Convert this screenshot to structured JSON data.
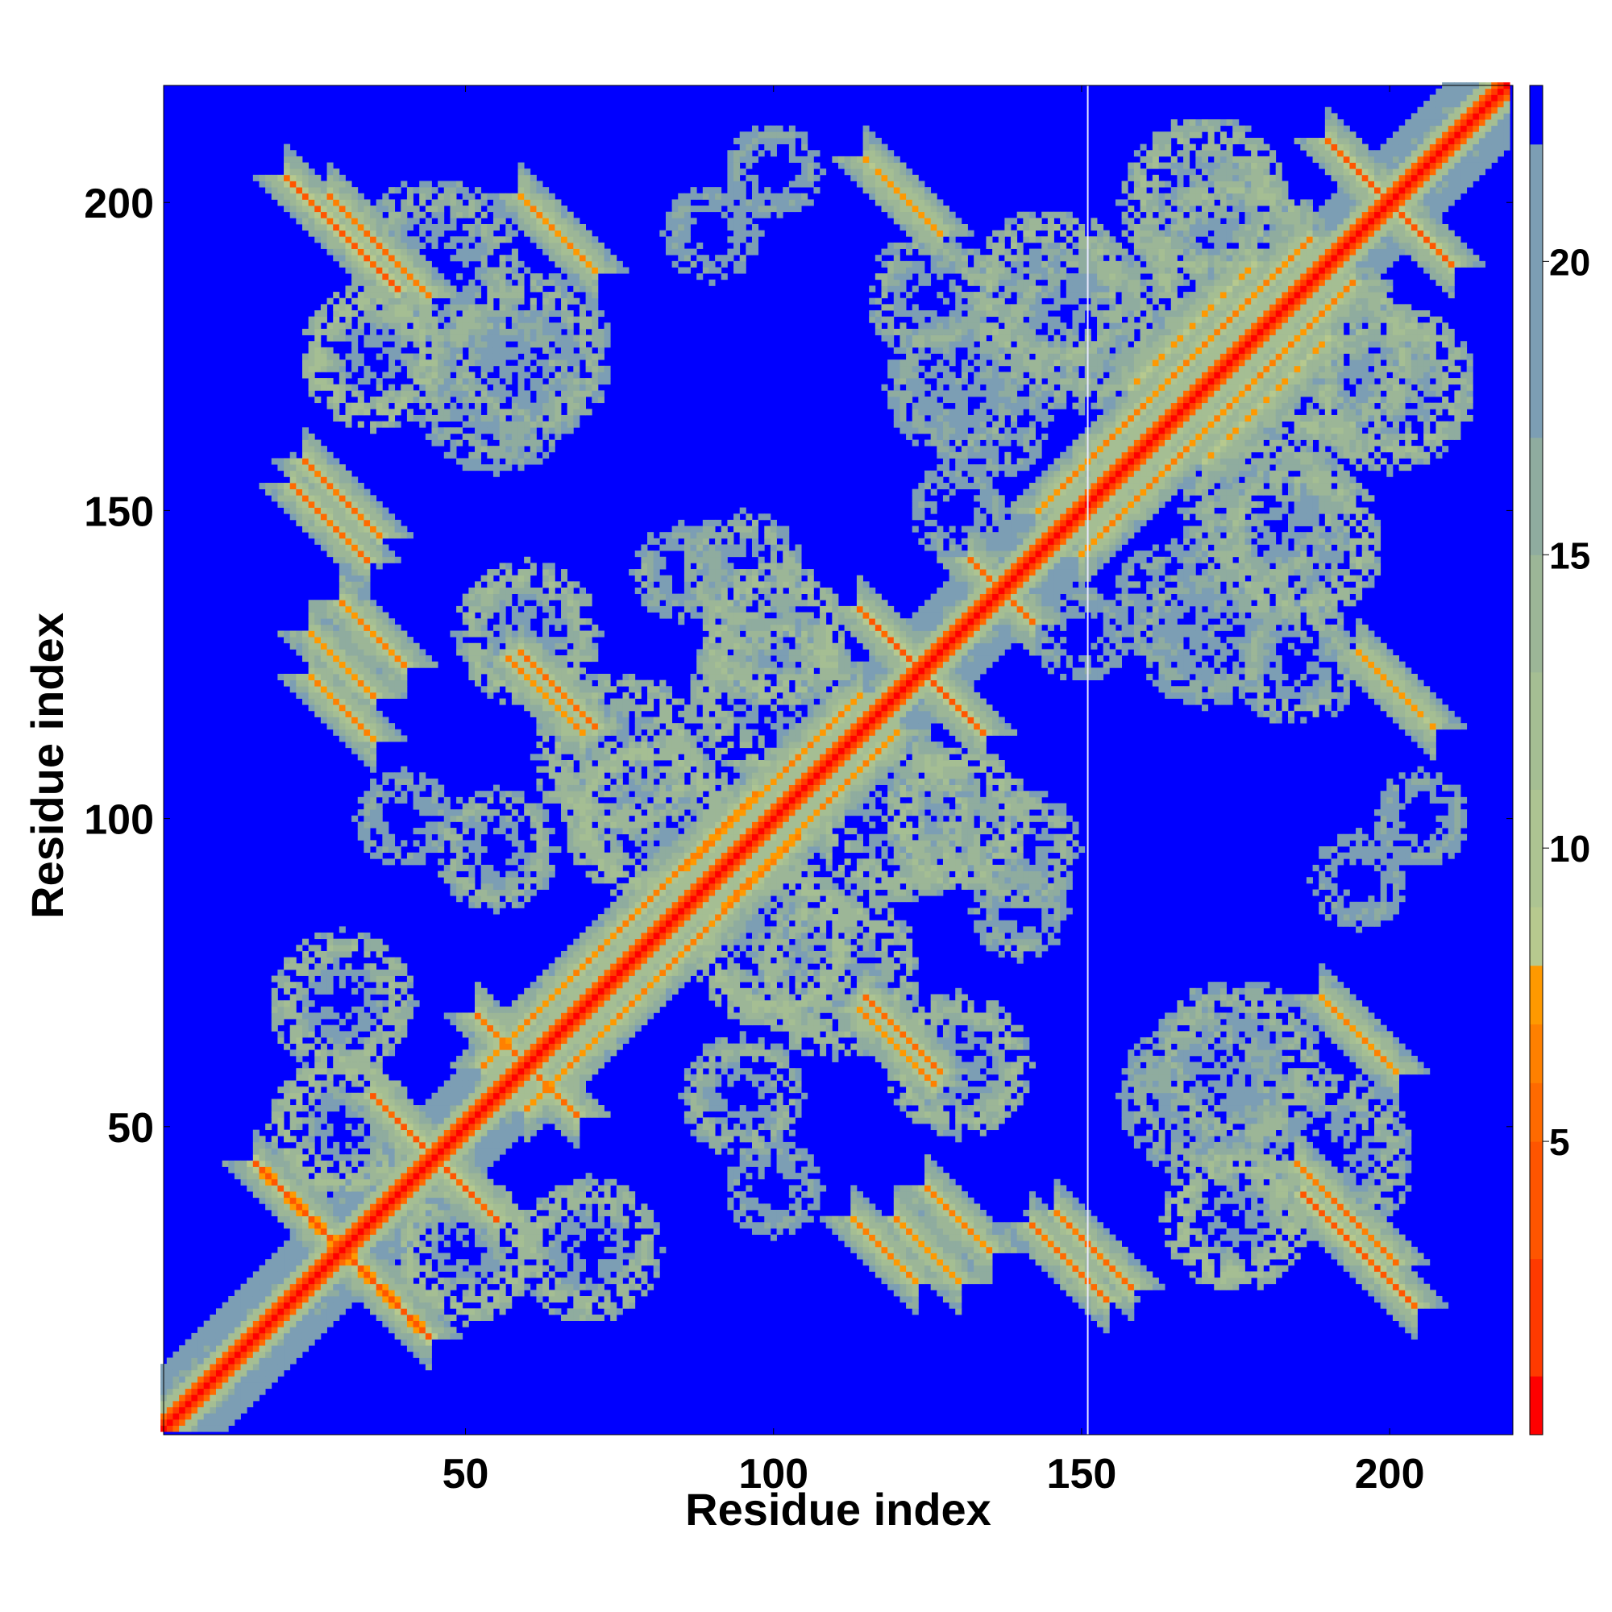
{
  "chart_data": {
    "type": "heatmap",
    "title": "",
    "xlabel": "Residue index",
    "ylabel": "Residue index",
    "n_residues": 219,
    "xlim": [
      1,
      219
    ],
    "ylim": [
      1,
      219
    ],
    "x_ticks": [
      50,
      100,
      150,
      200
    ],
    "y_ticks": [
      50,
      100,
      150,
      200
    ],
    "x_tick_labels": [
      "50",
      "100",
      "150",
      "200"
    ],
    "y_tick_labels": [
      "50",
      "100",
      "150",
      "200"
    ],
    "grid": false,
    "value_range": [
      0,
      23
    ],
    "colorbar": {
      "ticks": [
        5,
        10,
        15,
        20
      ],
      "tick_labels": [
        "5",
        "10",
        "15",
        "20"
      ],
      "levels": [
        {
          "from": 0,
          "to": 1,
          "color": "#ff0000"
        },
        {
          "from": 1,
          "to": 3,
          "color": "#ff3a00"
        },
        {
          "from": 3,
          "to": 5,
          "color": "#ff5500"
        },
        {
          "from": 5,
          "to": 6,
          "color": "#ff6a00"
        },
        {
          "from": 6,
          "to": 7,
          "color": "#ff8000"
        },
        {
          "from": 7,
          "to": 8,
          "color": "#ff9900"
        },
        {
          "from": 8,
          "to": 9,
          "color": "#b7c98e"
        },
        {
          "from": 9,
          "to": 11,
          "color": "#adc492"
        },
        {
          "from": 11,
          "to": 13,
          "color": "#a5be93"
        },
        {
          "from": 13,
          "to": 15,
          "color": "#9cb697"
        },
        {
          "from": 15,
          "to": 17,
          "color": "#8fac9f"
        },
        {
          "from": 17,
          "to": 22,
          "color": "#7c9eb4"
        },
        {
          "from": 22,
          "to": 23,
          "color": "#0000ff"
        }
      ]
    },
    "structure": {
      "diagonal_value": 0.5,
      "background_value": 23,
      "features": [
        {
          "type": "anti",
          "x": 30,
          "y": 195,
          "length": 9,
          "value": 4
        },
        {
          "type": "anti",
          "x": 65,
          "y": 195,
          "length": 6,
          "value": 6
        },
        {
          "type": "anti",
          "x": 30,
          "y": 152,
          "length": 6,
          "value": 5
        },
        {
          "type": "anti",
          "x": 30,
          "y": 125,
          "length": 5,
          "value": 6
        },
        {
          "type": "anti",
          "x": 63,
          "y": 120,
          "length": 6,
          "value": 6
        },
        {
          "type": "anti",
          "x": 28,
          "y": 32,
          "length": 12,
          "value": 3
        },
        {
          "type": "anti",
          "x": 45,
          "y": 45,
          "length": 10,
          "value": 4
        },
        {
          "type": "anti",
          "x": 60,
          "y": 60,
          "length": 8,
          "value": 5
        },
        {
          "type": "anti",
          "x": 123,
          "y": 125,
          "length": 9,
          "value": 4
        },
        {
          "type": "anti",
          "x": 137,
          "y": 137,
          "length": 5,
          "value": 5
        },
        {
          "type": "anti",
          "x": 200,
          "y": 200,
          "length": 10,
          "value": 4
        },
        {
          "type": "anti",
          "x": 193,
          "y": 36,
          "length": 8,
          "value": 5
        },
        {
          "type": "anti",
          "x": 130,
          "y": 35,
          "length": 5,
          "value": 6
        },
        {
          "type": "anti",
          "x": 148,
          "y": 28,
          "length": 6,
          "value": 5
        },
        {
          "type": "anti",
          "x": 118,
          "y": 30,
          "length": 5,
          "value": 6
        },
        {
          "type": "anti",
          "x": 121,
          "y": 65,
          "length": 6,
          "value": 5
        },
        {
          "type": "anti",
          "x": 200,
          "y": 122,
          "length": 5,
          "value": 7
        },
        {
          "type": "anti",
          "x": 120,
          "y": 202,
          "length": 5,
          "value": 7
        },
        {
          "type": "para",
          "x": 165,
          "y": 172,
          "length": 22,
          "value": 6
        },
        {
          "type": "para",
          "x": 75,
          "y": 82,
          "length": 22,
          "value": 6
        },
        {
          "type": "para",
          "x": 100,
          "y": 106,
          "length": 14,
          "value": 6
        },
        {
          "type": "para",
          "x": 168,
          "y": 180,
          "length": 10,
          "value": 7
        },
        {
          "type": "blob",
          "x": 35,
          "y": 175,
          "radius": 12,
          "value": 10
        },
        {
          "type": "blob",
          "x": 60,
          "y": 175,
          "radius": 14,
          "value": 12
        },
        {
          "type": "blob",
          "x": 80,
          "y": 100,
          "radius": 14,
          "value": 10
        },
        {
          "type": "blob",
          "x": 120,
          "y": 100,
          "radius": 14,
          "value": 11
        },
        {
          "type": "blob",
          "x": 100,
          "y": 130,
          "radius": 12,
          "value": 10
        },
        {
          "type": "blob",
          "x": 110,
          "y": 75,
          "radius": 14,
          "value": 11
        },
        {
          "type": "blob",
          "x": 130,
          "y": 60,
          "radius": 12,
          "value": 11
        },
        {
          "type": "blob",
          "x": 170,
          "y": 55,
          "radius": 14,
          "value": 13
        },
        {
          "type": "blob",
          "x": 190,
          "y": 45,
          "radius": 14,
          "value": 12
        },
        {
          "type": "blob",
          "x": 170,
          "y": 130,
          "radius": 12,
          "value": 13
        },
        {
          "type": "blob",
          "x": 185,
          "y": 145,
          "radius": 14,
          "value": 11
        },
        {
          "type": "blob",
          "x": 175,
          "y": 190,
          "radius": 16,
          "value": 11
        },
        {
          "type": "blob",
          "x": 200,
          "y": 170,
          "radius": 14,
          "value": 11
        },
        {
          "type": "blob",
          "x": 150,
          "y": 180,
          "radius": 14,
          "value": 12
        },
        {
          "type": "blob",
          "x": 135,
          "y": 165,
          "radius": 10,
          "value": 14
        },
        {
          "type": "blob",
          "x": 50,
          "y": 30,
          "radius": 12,
          "value": 10
        },
        {
          "type": "blob",
          "x": 30,
          "y": 70,
          "radius": 12,
          "value": 11
        },
        {
          "type": "blob",
          "x": 40,
          "y": 100,
          "radius": 8,
          "value": 14
        },
        {
          "type": "blob",
          "x": 205,
          "y": 100,
          "radius": 8,
          "value": 14
        },
        {
          "type": "blob",
          "x": 95,
          "y": 55,
          "radius": 10,
          "value": 12
        },
        {
          "type": "blob",
          "x": 85,
          "y": 140,
          "radius": 8,
          "value": 13
        },
        {
          "type": "blob",
          "x": 90,
          "y": 195,
          "radius": 8,
          "value": 14
        },
        {
          "type": "blob",
          "x": 125,
          "y": 185,
          "radius": 10,
          "value": 12
        },
        {
          "type": "blob",
          "x": 140,
          "y": 95,
          "radius": 10,
          "value": 12
        },
        {
          "type": "blob",
          "x": 150,
          "y": 130,
          "radius": 8,
          "value": 14
        }
      ]
    }
  }
}
